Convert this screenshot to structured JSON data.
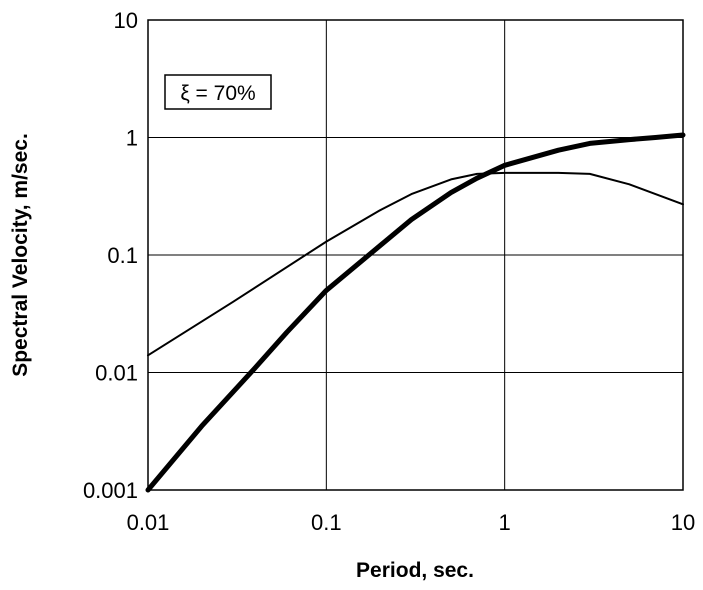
{
  "chart_data": {
    "type": "line",
    "title": "",
    "xlabel": "Period, sec.",
    "ylabel": "Spectral Velocity, m/sec.",
    "x_scale": "log",
    "y_scale": "log",
    "xlim": [
      0.01,
      10
    ],
    "ylim": [
      0.001,
      10
    ],
    "x_ticks": [
      "0.01",
      "0.1",
      "1",
      "10"
    ],
    "y_ticks": [
      "0.001",
      "0.01",
      "0.1",
      "1",
      "10"
    ],
    "grid": true,
    "legend": "none",
    "annotation": "ξ = 70%",
    "series": [
      {
        "style": "thin",
        "points": [
          [
            0.01,
            0.014
          ],
          [
            0.03,
            0.04
          ],
          [
            0.1,
            0.13
          ],
          [
            0.2,
            0.24
          ],
          [
            0.3,
            0.33
          ],
          [
            0.5,
            0.44
          ],
          [
            0.7,
            0.49
          ],
          [
            1,
            0.5
          ],
          [
            2,
            0.5
          ],
          [
            3,
            0.49
          ],
          [
            5,
            0.4
          ],
          [
            10,
            0.27
          ]
        ]
      },
      {
        "style": "thick",
        "points": [
          [
            0.01,
            0.0009
          ],
          [
            0.02,
            0.0035
          ],
          [
            0.04,
            0.011
          ],
          [
            0.06,
            0.022
          ],
          [
            0.1,
            0.05
          ],
          [
            0.2,
            0.12
          ],
          [
            0.3,
            0.2
          ],
          [
            0.5,
            0.34
          ],
          [
            0.7,
            0.45
          ],
          [
            1,
            0.58
          ],
          [
            2,
            0.78
          ],
          [
            3,
            0.89
          ],
          [
            5,
            0.96
          ],
          [
            7,
            1.0
          ],
          [
            10,
            1.05
          ]
        ]
      }
    ]
  },
  "colors": {
    "line": "#000000",
    "grid": "#000000",
    "background": "#ffffff"
  }
}
